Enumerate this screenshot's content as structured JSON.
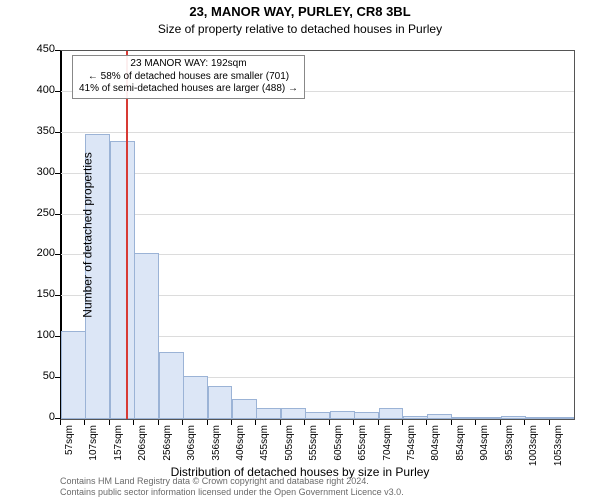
{
  "title_line1": "23, MANOR WAY, PURLEY, CR8 3BL",
  "title_line2": "Size of property relative to detached houses in Purley",
  "x_axis_title": "Distribution of detached houses by size in Purley",
  "y_axis_title": "Number of detached properties",
  "footer_line1": "Contains HM Land Registry data © Crown copyright and database right 2024.",
  "footer_line2": "Contains public sector information licensed under the Open Government Licence v3.0.",
  "annotation": {
    "l1": "23 MANOR WAY: 192sqm",
    "l2": "← 58% of detached houses are smaller (701)",
    "l3": "41% of semi-detached houses are larger (488) →"
  },
  "chart": {
    "type": "histogram",
    "bar_fill": "#dce6f6",
    "bar_stroke": "#9bb3d6",
    "grid_color": "#dcdcdc",
    "ref_line_color": "#d83a34",
    "ref_value_x": 192,
    "plot_bg": "#ffffff",
    "ylim": [
      0,
      450
    ],
    "ytick_step": 50,
    "x_bin_start": 57,
    "x_bin_width": 50,
    "x_labels": [
      "57sqm",
      "107sqm",
      "157sqm",
      "206sqm",
      "256sqm",
      "306sqm",
      "356sqm",
      "406sqm",
      "455sqm",
      "505sqm",
      "555sqm",
      "605sqm",
      "655sqm",
      "704sqm",
      "754sqm",
      "804sqm",
      "854sqm",
      "904sqm",
      "953sqm",
      "1003sqm",
      "1053sqm"
    ],
    "bars": [
      108,
      348,
      340,
      203,
      82,
      52,
      40,
      24,
      13,
      14,
      8,
      10,
      8,
      14,
      4,
      6,
      2,
      2,
      4,
      2,
      2
    ]
  }
}
